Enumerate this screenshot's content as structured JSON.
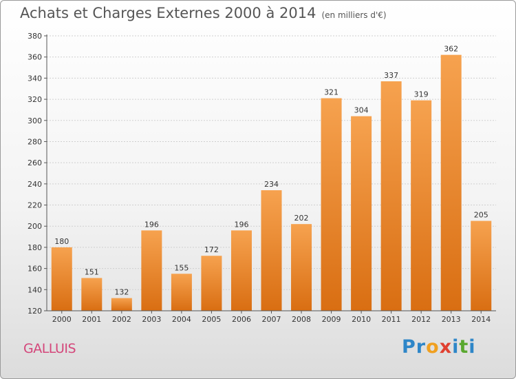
{
  "title": "Achats et Charges Externes 2000 à 2014",
  "subtitle": "(en milliers d'€)",
  "location": "GALLUIS",
  "brand": {
    "text": "Proxiti",
    "letters": [
      {
        "char": "P",
        "color": "#2e86c8"
      },
      {
        "char": "r",
        "color": "#2e86c8"
      },
      {
        "char": "o",
        "color": "#f0a020"
      },
      {
        "char": "x",
        "color": "#e04030"
      },
      {
        "char": "i",
        "color": "#2e86c8"
      },
      {
        "char": "t",
        "color": "#5aa830"
      },
      {
        "char": "i",
        "color": "#2e86c8"
      }
    ]
  },
  "colors": {
    "bar_light": "#f6a24f",
    "bar_dark": "#d96e12",
    "title": "#555555",
    "location": "#d4467a"
  },
  "chart_data": {
    "type": "bar",
    "categories": [
      "2000",
      "2001",
      "2002",
      "2003",
      "2004",
      "2005",
      "2006",
      "2007",
      "2008",
      "2009",
      "2010",
      "2011",
      "2012",
      "2013",
      "2014"
    ],
    "values": [
      180,
      151,
      132,
      196,
      155,
      172,
      196,
      234,
      202,
      321,
      304,
      337,
      319,
      362,
      205
    ],
    "ylim": [
      120,
      380
    ],
    "yticks": [
      120,
      140,
      160,
      180,
      200,
      220,
      240,
      260,
      280,
      300,
      320,
      340,
      360,
      380
    ],
    "grid": true
  }
}
